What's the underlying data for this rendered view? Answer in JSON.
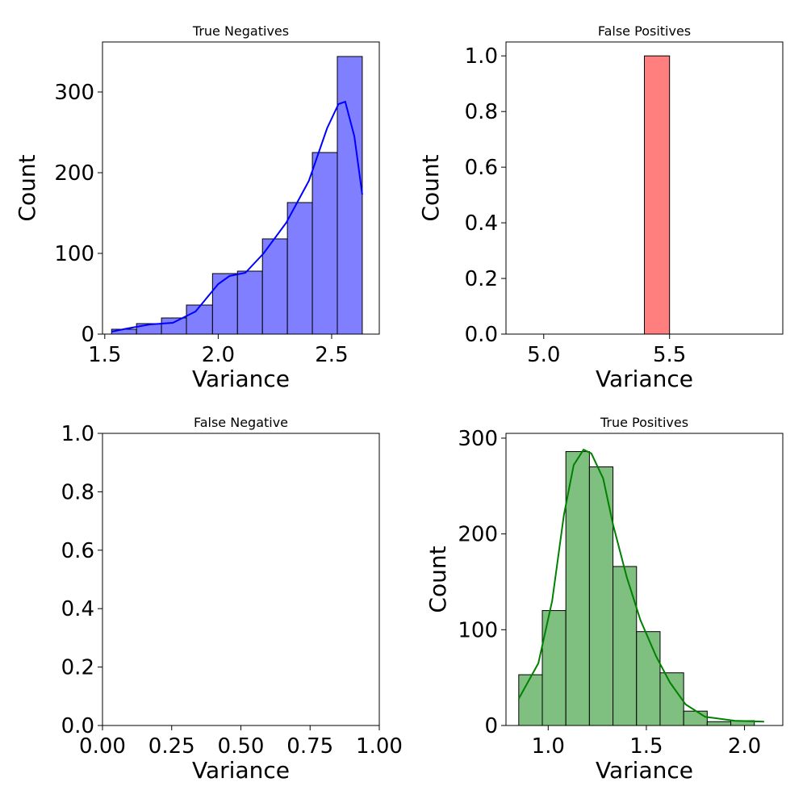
{
  "chart_data": [
    {
      "type": "bar",
      "title": "True Negatives",
      "xlabel": "Variance",
      "ylabel": "Count",
      "xlim": [
        1.49,
        2.71
      ],
      "ylim": [
        0,
        362
      ],
      "xticks": [
        "1.5",
        "2.0",
        "2.5"
      ],
      "yticks": [
        "0",
        "100",
        "200",
        "300"
      ],
      "bar_color": "#7f7fff",
      "kde_color": "#0000ff",
      "bins": [
        {
          "x0": 1.53,
          "x1": 1.64,
          "value": 6
        },
        {
          "x0": 1.64,
          "x1": 1.75,
          "value": 13
        },
        {
          "x0": 1.75,
          "x1": 1.86,
          "value": 20
        },
        {
          "x0": 1.86,
          "x1": 1.975,
          "value": 36
        },
        {
          "x0": 1.975,
          "x1": 2.085,
          "value": 75
        },
        {
          "x0": 2.085,
          "x1": 2.195,
          "value": 78
        },
        {
          "x0": 2.195,
          "x1": 2.305,
          "value": 118
        },
        {
          "x0": 2.305,
          "x1": 2.415,
          "value": 163
        },
        {
          "x0": 2.415,
          "x1": 2.525,
          "value": 225
        },
        {
          "x0": 2.525,
          "x1": 2.635,
          "value": 344
        }
      ],
      "kde": [
        [
          1.53,
          3
        ],
        [
          1.6,
          7
        ],
        [
          1.7,
          12
        ],
        [
          1.8,
          14
        ],
        [
          1.9,
          28
        ],
        [
          2.0,
          62
        ],
        [
          2.05,
          72
        ],
        [
          2.12,
          76
        ],
        [
          2.2,
          100
        ],
        [
          2.3,
          138
        ],
        [
          2.4,
          190
        ],
        [
          2.48,
          255
        ],
        [
          2.53,
          285
        ],
        [
          2.56,
          288
        ],
        [
          2.6,
          245
        ],
        [
          2.635,
          173
        ]
      ]
    },
    {
      "type": "bar",
      "title": "False Positives",
      "xlabel": "Variance",
      "ylabel": "Count",
      "xlim": [
        4.85,
        5.95
      ],
      "ylim": [
        0,
        1.05
      ],
      "xticks": [
        "5.0",
        "5.5"
      ],
      "yticks": [
        "0.0",
        "0.2",
        "0.4",
        "0.6",
        "0.8",
        "1.0"
      ],
      "bar_color": "#ff7f7f",
      "bins": [
        {
          "x0": 5.4,
          "x1": 5.5,
          "value": 1
        }
      ]
    },
    {
      "type": "bar",
      "title": "False Negative",
      "xlabel": "Variance",
      "ylabel": "",
      "xlim": [
        0,
        1
      ],
      "ylim": [
        0,
        1
      ],
      "xticks": [
        "0.00",
        "0.25",
        "0.50",
        "0.75",
        "1.00"
      ],
      "yticks": [
        "0.0",
        "0.2",
        "0.4",
        "0.6",
        "0.8",
        "1.0"
      ],
      "bins": []
    },
    {
      "type": "bar",
      "title": "True Positives",
      "xlabel": "Variance",
      "ylabel": "Count",
      "xlim": [
        0.785,
        2.195
      ],
      "ylim": [
        0,
        305
      ],
      "xticks": [
        "1.0",
        "1.5",
        "2.0"
      ],
      "yticks": [
        "0",
        "100",
        "200",
        "300"
      ],
      "bar_color": "#7fbf7f",
      "kde_color": "#008000",
      "bins": [
        {
          "x0": 0.85,
          "x1": 0.97,
          "value": 53
        },
        {
          "x0": 0.97,
          "x1": 1.09,
          "value": 120
        },
        {
          "x0": 1.09,
          "x1": 1.21,
          "value": 286
        },
        {
          "x0": 1.21,
          "x1": 1.33,
          "value": 270
        },
        {
          "x0": 1.33,
          "x1": 1.45,
          "value": 166
        },
        {
          "x0": 1.45,
          "x1": 1.57,
          "value": 98
        },
        {
          "x0": 1.57,
          "x1": 1.69,
          "value": 55
        },
        {
          "x0": 1.69,
          "x1": 1.81,
          "value": 15
        },
        {
          "x0": 1.81,
          "x1": 1.93,
          "value": 4
        },
        {
          "x0": 1.93,
          "x1": 2.05,
          "value": 5
        }
      ],
      "kde": [
        [
          0.85,
          28
        ],
        [
          0.95,
          65
        ],
        [
          1.02,
          130
        ],
        [
          1.08,
          220
        ],
        [
          1.13,
          272
        ],
        [
          1.18,
          288
        ],
        [
          1.22,
          284
        ],
        [
          1.28,
          258
        ],
        [
          1.33,
          210
        ],
        [
          1.4,
          155
        ],
        [
          1.47,
          110
        ],
        [
          1.55,
          72
        ],
        [
          1.62,
          45
        ],
        [
          1.7,
          22
        ],
        [
          1.8,
          9
        ],
        [
          1.95,
          5
        ],
        [
          2.1,
          4
        ]
      ]
    }
  ]
}
